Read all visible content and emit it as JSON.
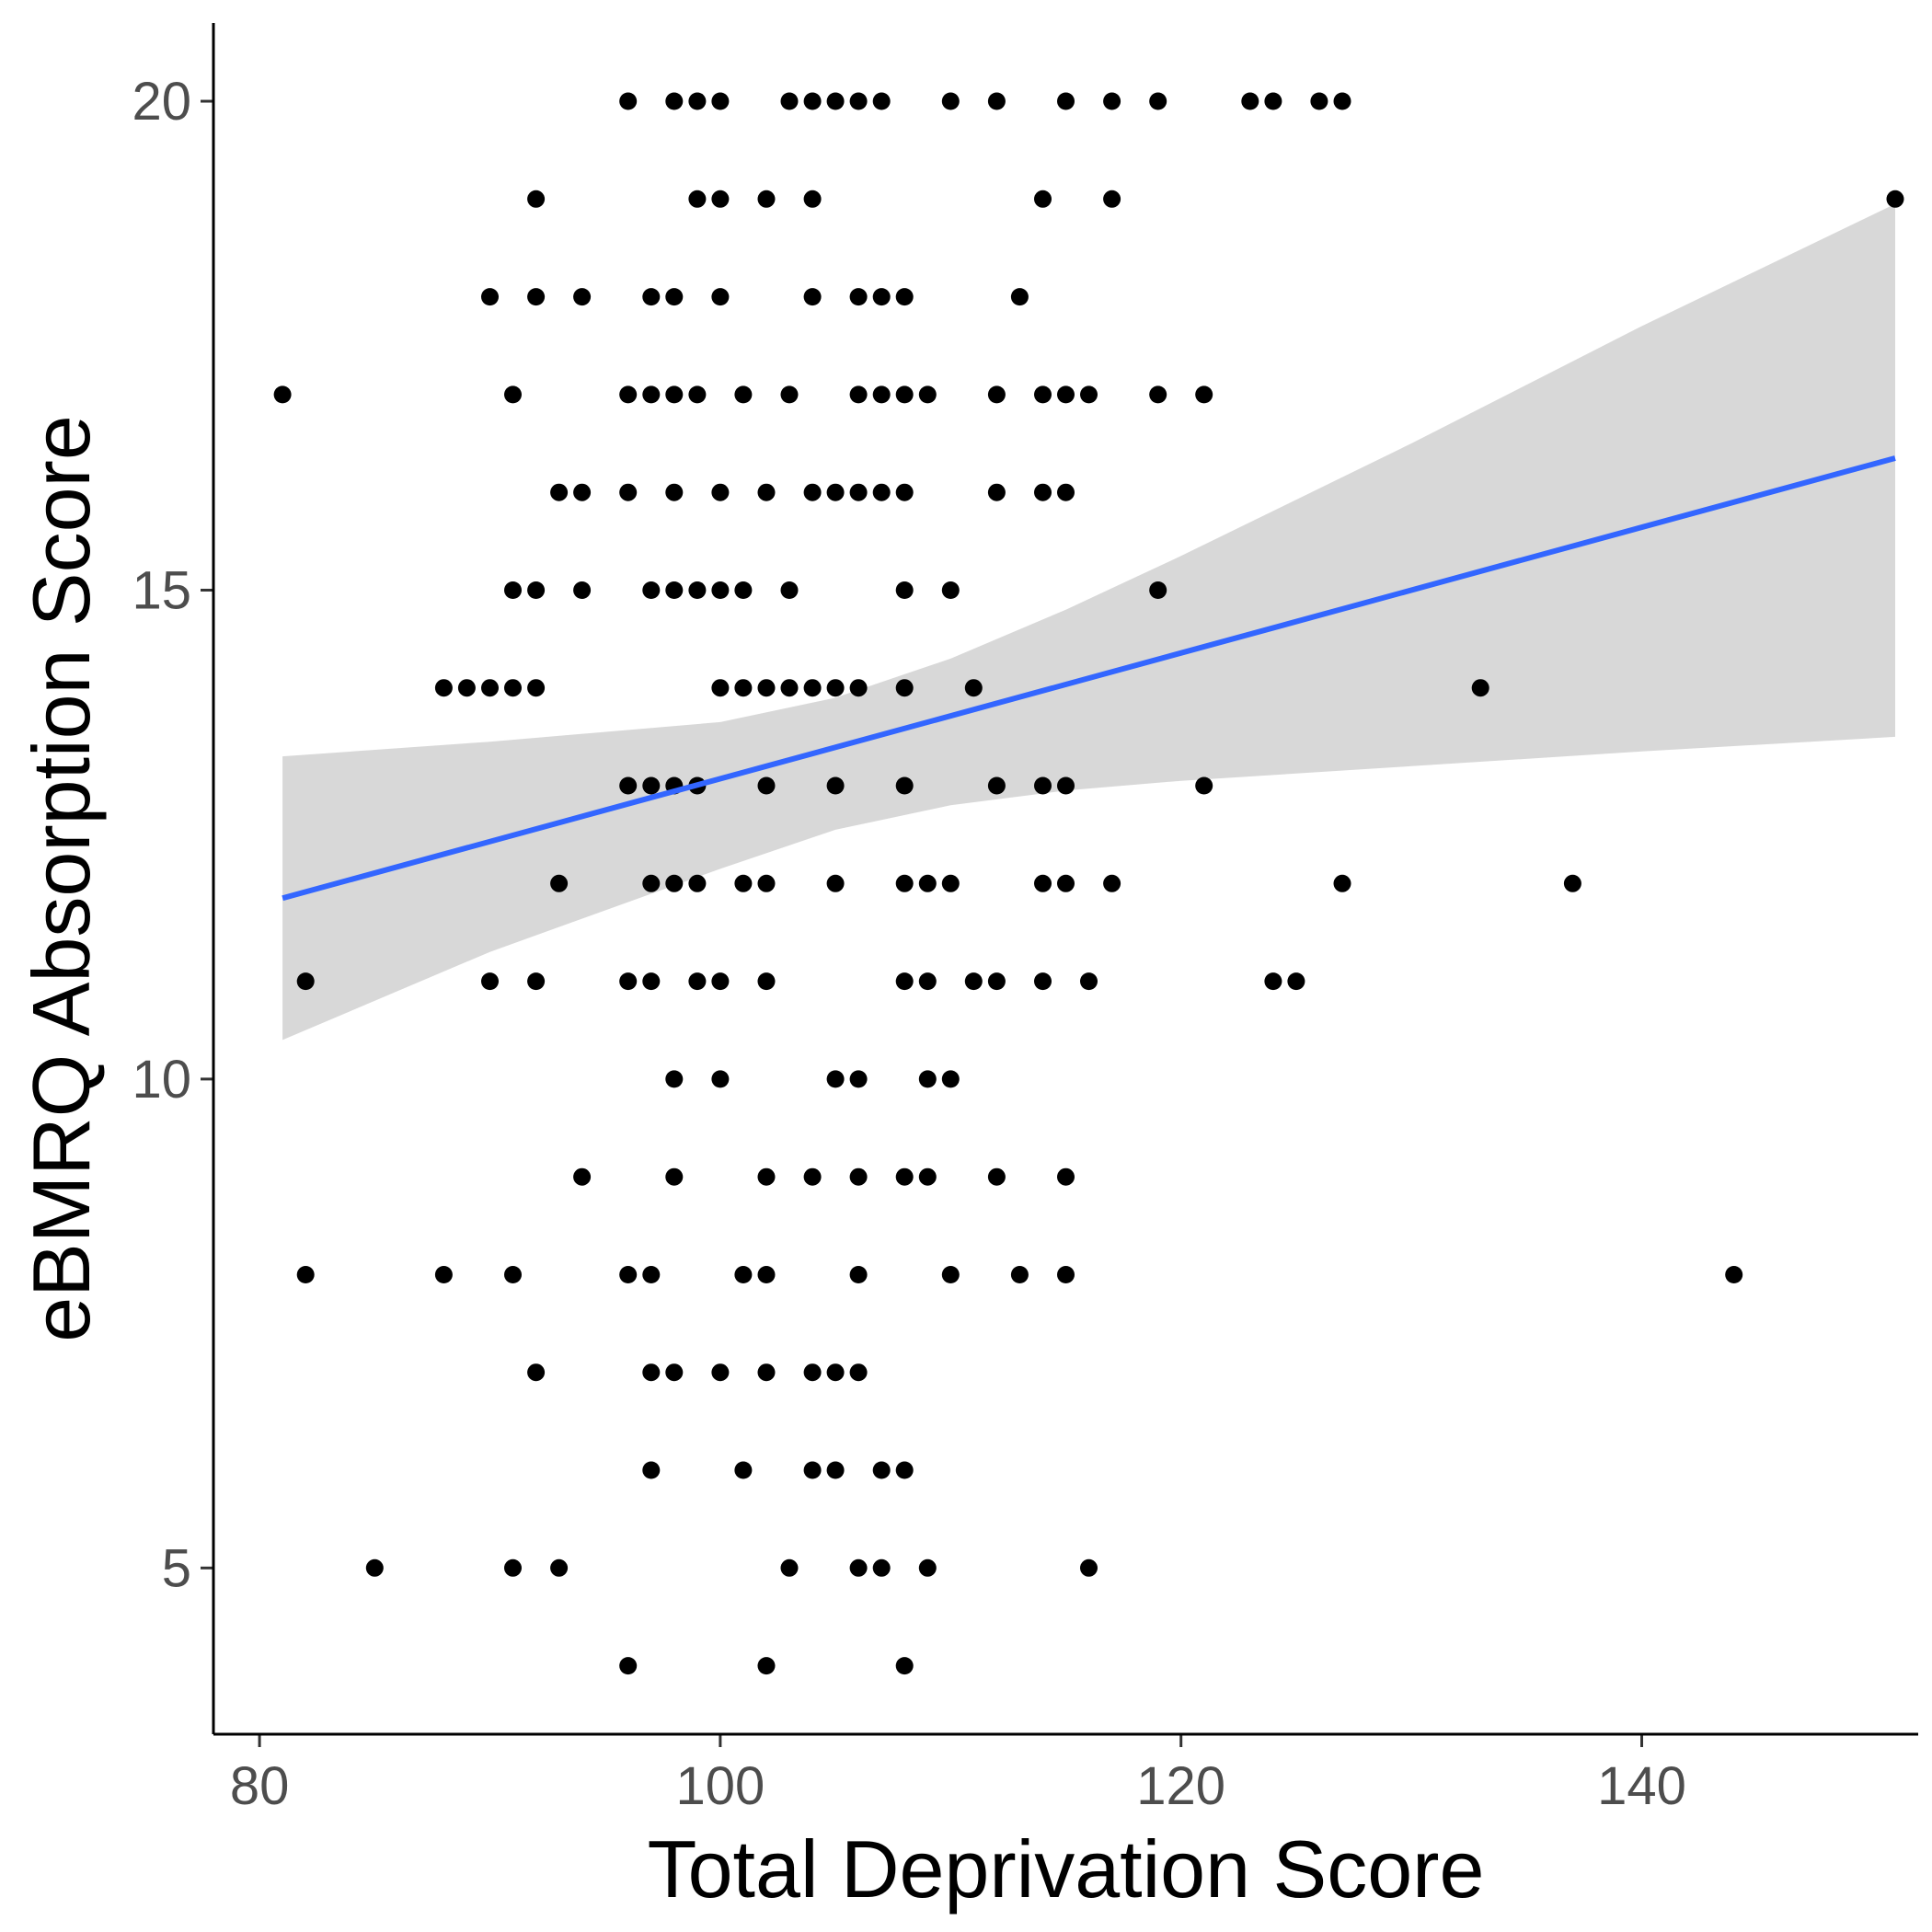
{
  "chart_data": {
    "type": "scatter",
    "xlabel": "Total Deprivation Score",
    "ylabel": "eBMRQ Absorption Score",
    "xlim": [
      78,
      152
    ],
    "ylim": [
      3.3,
      20.8
    ],
    "x_ticks": [
      80,
      100,
      120,
      140
    ],
    "y_ticks": [
      5,
      10,
      15,
      20
    ],
    "grid": false,
    "colors": {
      "points": "#000000",
      "fit_line": "#3366FF",
      "ribbon": "#BEBEBE"
    },
    "series": [
      {
        "type": "scatter",
        "points": [
          [
            96,
            20
          ],
          [
            98,
            20
          ],
          [
            99,
            20
          ],
          [
            100,
            20
          ],
          [
            103,
            20
          ],
          [
            104,
            20
          ],
          [
            105,
            20
          ],
          [
            106,
            20
          ],
          [
            107,
            20
          ],
          [
            110,
            20
          ],
          [
            112,
            20
          ],
          [
            115,
            20
          ],
          [
            117,
            20
          ],
          [
            119,
            20
          ],
          [
            123,
            20
          ],
          [
            124,
            20
          ],
          [
            126,
            20
          ],
          [
            127,
            20
          ],
          [
            92,
            19
          ],
          [
            99,
            19
          ],
          [
            100,
            19
          ],
          [
            102,
            19
          ],
          [
            104,
            19
          ],
          [
            114,
            19
          ],
          [
            117,
            19
          ],
          [
            151,
            19
          ],
          [
            90,
            18
          ],
          [
            92,
            18
          ],
          [
            94,
            18
          ],
          [
            97,
            18
          ],
          [
            98,
            18
          ],
          [
            100,
            18
          ],
          [
            104,
            18
          ],
          [
            106,
            18
          ],
          [
            107,
            18
          ],
          [
            108,
            18
          ],
          [
            113,
            18
          ],
          [
            81,
            17
          ],
          [
            91,
            17
          ],
          [
            96,
            17
          ],
          [
            97,
            17
          ],
          [
            98,
            17
          ],
          [
            99,
            17
          ],
          [
            101,
            17
          ],
          [
            103,
            17
          ],
          [
            106,
            17
          ],
          [
            107,
            17
          ],
          [
            108,
            17
          ],
          [
            109,
            17
          ],
          [
            112,
            17
          ],
          [
            114,
            17
          ],
          [
            115,
            17
          ],
          [
            116,
            17
          ],
          [
            119,
            17
          ],
          [
            121,
            17
          ],
          [
            93,
            16
          ],
          [
            94,
            16
          ],
          [
            96,
            16
          ],
          [
            98,
            16
          ],
          [
            100,
            16
          ],
          [
            102,
            16
          ],
          [
            104,
            16
          ],
          [
            105,
            16
          ],
          [
            106,
            16
          ],
          [
            107,
            16
          ],
          [
            108,
            16
          ],
          [
            112,
            16
          ],
          [
            114,
            16
          ],
          [
            115,
            16
          ],
          [
            91,
            15
          ],
          [
            92,
            15
          ],
          [
            94,
            15
          ],
          [
            97,
            15
          ],
          [
            98,
            15
          ],
          [
            99,
            15
          ],
          [
            100,
            15
          ],
          [
            101,
            15
          ],
          [
            103,
            15
          ],
          [
            108,
            15
          ],
          [
            110,
            15
          ],
          [
            119,
            15
          ],
          [
            88,
            14
          ],
          [
            89,
            14
          ],
          [
            90,
            14
          ],
          [
            91,
            14
          ],
          [
            92,
            14
          ],
          [
            100,
            14
          ],
          [
            101,
            14
          ],
          [
            102,
            14
          ],
          [
            103,
            14
          ],
          [
            104,
            14
          ],
          [
            105,
            14
          ],
          [
            106,
            14
          ],
          [
            108,
            14
          ],
          [
            111,
            14
          ],
          [
            133,
            14
          ],
          [
            96,
            13
          ],
          [
            97,
            13
          ],
          [
            98,
            13
          ],
          [
            99,
            13
          ],
          [
            102,
            13
          ],
          [
            105,
            13
          ],
          [
            108,
            13
          ],
          [
            112,
            13
          ],
          [
            114,
            13
          ],
          [
            115,
            13
          ],
          [
            121,
            13
          ],
          [
            93,
            12
          ],
          [
            97,
            12
          ],
          [
            98,
            12
          ],
          [
            99,
            12
          ],
          [
            101,
            12
          ],
          [
            102,
            12
          ],
          [
            105,
            12
          ],
          [
            108,
            12
          ],
          [
            109,
            12
          ],
          [
            110,
            12
          ],
          [
            114,
            12
          ],
          [
            115,
            12
          ],
          [
            117,
            12
          ],
          [
            127,
            12
          ],
          [
            137,
            12
          ],
          [
            82,
            11
          ],
          [
            90,
            11
          ],
          [
            92,
            11
          ],
          [
            96,
            11
          ],
          [
            97,
            11
          ],
          [
            99,
            11
          ],
          [
            100,
            11
          ],
          [
            102,
            11
          ],
          [
            108,
            11
          ],
          [
            109,
            11
          ],
          [
            111,
            11
          ],
          [
            112,
            11
          ],
          [
            114,
            11
          ],
          [
            116,
            11
          ],
          [
            124,
            11
          ],
          [
            125,
            11
          ],
          [
            98,
            10
          ],
          [
            100,
            10
          ],
          [
            105,
            10
          ],
          [
            106,
            10
          ],
          [
            109,
            10
          ],
          [
            110,
            10
          ],
          [
            94,
            9
          ],
          [
            98,
            9
          ],
          [
            102,
            9
          ],
          [
            104,
            9
          ],
          [
            106,
            9
          ],
          [
            108,
            9
          ],
          [
            109,
            9
          ],
          [
            112,
            9
          ],
          [
            115,
            9
          ],
          [
            82,
            8
          ],
          [
            88,
            8
          ],
          [
            91,
            8
          ],
          [
            96,
            8
          ],
          [
            97,
            8
          ],
          [
            101,
            8
          ],
          [
            102,
            8
          ],
          [
            106,
            8
          ],
          [
            110,
            8
          ],
          [
            113,
            8
          ],
          [
            115,
            8
          ],
          [
            144,
            8
          ],
          [
            92,
            7
          ],
          [
            97,
            7
          ],
          [
            98,
            7
          ],
          [
            100,
            7
          ],
          [
            102,
            7
          ],
          [
            104,
            7
          ],
          [
            105,
            7
          ],
          [
            106,
            7
          ],
          [
            97,
            6
          ],
          [
            101,
            6
          ],
          [
            104,
            6
          ],
          [
            105,
            6
          ],
          [
            107,
            6
          ],
          [
            108,
            6
          ],
          [
            85,
            5
          ],
          [
            91,
            5
          ],
          [
            93,
            5
          ],
          [
            103,
            5
          ],
          [
            106,
            5
          ],
          [
            107,
            5
          ],
          [
            109,
            5
          ],
          [
            116,
            5
          ],
          [
            96,
            4
          ],
          [
            102,
            4
          ],
          [
            108,
            4
          ]
        ]
      },
      {
        "type": "line",
        "x": [
          81,
          151
        ],
        "values": [
          11.85,
          16.35
        ]
      },
      {
        "type": "area",
        "x": [
          81,
          90,
          100,
          105,
          110,
          115,
          120,
          130,
          140,
          151
        ],
        "lower": [
          10.4,
          11.3,
          12.15,
          12.55,
          12.8,
          12.95,
          13.05,
          13.2,
          13.35,
          13.5
        ],
        "upper": [
          13.3,
          13.45,
          13.65,
          13.9,
          14.3,
          14.8,
          15.35,
          16.5,
          17.7,
          18.95
        ]
      }
    ]
  }
}
